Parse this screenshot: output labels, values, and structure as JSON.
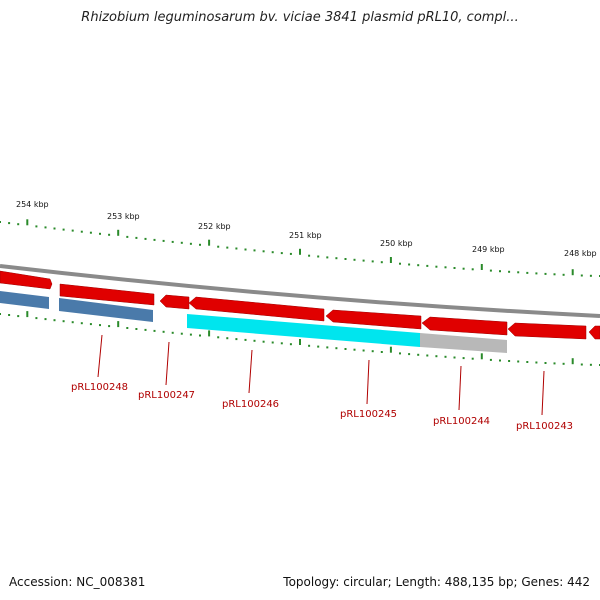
{
  "title": "Rhizobium leguminosarum bv. viciae 3841 plasmid pRL10, compl...",
  "footer": {
    "accession": "Accession: NC_008381",
    "summary": "Topology: circular; Length: 488,135 bp; Genes: 442"
  },
  "kbp_labels": [
    "254 kbp",
    "253 kbp",
    "252 kbp",
    "251 kbp",
    "250 kbp",
    "249 kbp",
    "248 kbp"
  ],
  "gene_labels": [
    "pRL100248",
    "pRL100247",
    "pRL100246",
    "pRL100245",
    "pRL100244",
    "pRL100243"
  ],
  "colors": {
    "backbone": "#8a8a8a",
    "cds": "#e00000",
    "blue": "#4a7aaa",
    "cyan": "#00e5ee",
    "grey": "#b8b8b8",
    "tick": "#2a8a2a",
    "label": "#b00000"
  }
}
